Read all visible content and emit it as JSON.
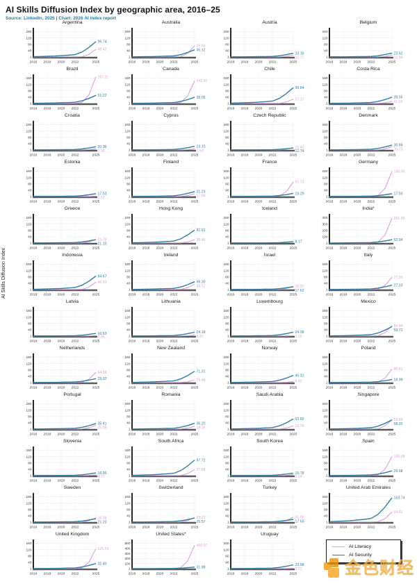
{
  "header": {
    "title": "AI Skills Diffusion Index by geographic area, 2016–25",
    "subtitle": "Source: LinkedIn, 2025 | Chart: 2026 AI Index report"
  },
  "ylabel": "AI Skills Diffusion Index",
  "legend": {
    "items": [
      {
        "label": "AI Literacy",
        "series": "literacy",
        "color": "#dc9fd8"
      },
      {
        "label": "AI Security",
        "series": "security",
        "color": "#2e7fa3"
      }
    ]
  },
  "watermark": {
    "text": "金色财经"
  },
  "colors": {
    "literacy": "#dc9fd8",
    "security": "#2e7fa3",
    "subtitle": "#1b7fa6",
    "axis_spine": "#111111",
    "baseline": "#5a5a5a",
    "grid": "#e9eef3"
  },
  "chart_data": {
    "type": "line",
    "title": "AI Skills Diffusion Index by geographic area, 2016–25",
    "source": "Source: LinkedIn, 2025 | Chart: 2026 AI Index report",
    "ylabel": "AI Skills Diffusion Index",
    "x_years": [
      2016,
      2017,
      2018,
      2019,
      2020,
      2021,
      2022,
      2023,
      2024,
      2025
    ],
    "x_ticks": [
      "2016",
      "2018",
      "2020",
      "2022",
      "2025"
    ],
    "default_yticks": [
      160,
      120,
      80,
      40,
      1
    ],
    "series_names": [
      "AI Literacy",
      "AI Security"
    ],
    "legend_position": "bottom-right",
    "grid": true,
    "charts": [
      {
        "country": "Argentina",
        "literacy": 48.42,
        "security": 96.74
      },
      {
        "country": "Australia",
        "literacy": 69.93,
        "security": 45.12
      },
      {
        "country": "Austria",
        "literacy": 10.77,
        "security": 23.16
      },
      {
        "country": "Belgium",
        "literacy": 10.94,
        "security": 23.62
      },
      {
        "country": "Brazil",
        "literacy": 167.31,
        "security": 51.22
      },
      {
        "country": "Canada",
        "literacy": 142.97,
        "security": 39.05
      },
      {
        "country": "Chile",
        "literacy": 27.17,
        "security": 99.84
      },
      {
        "country": "Costa Rica",
        "literacy": 11.59,
        "security": 39.55
      },
      {
        "country": "Croatia",
        "literacy": 7.36,
        "security": 20.36
      },
      {
        "country": "Cyprus",
        "literacy": 7.53,
        "security": 23.1
      },
      {
        "country": "Czech Republic",
        "literacy": 15.42,
        "security": 12.74
      },
      {
        "country": "Denmark",
        "literacy": 20.73,
        "security": 30.86
      },
      {
        "country": "Estonia",
        "literacy": 2.52,
        "security": 17.53
      },
      {
        "country": "Finland",
        "literacy": 17.05,
        "security": 31.23
      },
      {
        "country": "France",
        "literacy": 91.73,
        "security": 19.29
      },
      {
        "country": "Germany",
        "literacy": 158.0,
        "security": 17.5
      },
      {
        "country": "Greece",
        "literacy": 21.7,
        "security": 21.1
      },
      {
        "country": "Hong Kong",
        "literacy": 20.46,
        "security": 81.91
      },
      {
        "country": "Iceland",
        "literacy": null,
        "security": 8.17
      },
      {
        "country": "India*",
        "literacy": 391.99,
        "security": 52.94,
        "yticks": [
          400,
          300,
          200,
          100,
          1
        ]
      },
      {
        "country": "Indonesia",
        "literacy": 46.53,
        "security": 84.67
      },
      {
        "country": "Ireland",
        "literacy": 34.52,
        "security": 49.3
      },
      {
        "country": "Israel",
        "literacy": 20.37,
        "security": 17.62
      },
      {
        "country": "Italy",
        "literacy": 77.95,
        "security": 27.33
      },
      {
        "country": "Latvia",
        "literacy": 2.95,
        "security": 16.63
      },
      {
        "country": "Lithuania",
        "literacy": 6.37,
        "security": 24.18
      },
      {
        "country": "Luxembourg",
        "literacy": 2.15,
        "security": 24.38
      },
      {
        "country": "Mexico",
        "literacy": 64.84,
        "security": 59.71
      },
      {
        "country": "Netherlands",
        "literacy": 64.68,
        "security": 25.02
      },
      {
        "country": "New Zealand",
        "literacy": 15.48,
        "security": 71.31
      },
      {
        "country": "Norway",
        "literacy": 5.92,
        "security": 45.31
      },
      {
        "country": "Poland",
        "literacy": 85.61,
        "security": 18.99
      },
      {
        "country": "Portugal",
        "literacy": 25.38,
        "security": 35.41
      },
      {
        "country": "Romania",
        "literacy": 18.35,
        "security": 36.2
      },
      {
        "country": "Saudi Arabia",
        "literacy": 19.76,
        "security": 63.6
      },
      {
        "country": "Singapore",
        "literacy": 59.93,
        "security": 58.02
      },
      {
        "country": "Slovenia",
        "literacy": 4.77,
        "security": 16.95
      },
      {
        "country": "South Africa",
        "literacy": 37.88,
        "security": 97.72
      },
      {
        "country": "South Korea",
        "literacy": 6.64,
        "security": 15.78
      },
      {
        "country": "Spain",
        "literacy": 120.68,
        "security": 29.68
      },
      {
        "country": "Sweden",
        "literacy": 26.98,
        "security": 21.2
      },
      {
        "country": "Switzerland",
        "literacy": 29.27,
        "security": 25.57
      },
      {
        "country": "Turkey",
        "literacy": 31.06,
        "security": 17.65
      },
      {
        "country": "United Arab Emirates",
        "literacy": 64.41,
        "security": 153.74
      },
      {
        "country": "United Kingdom",
        "literacy": 125.93,
        "security": 32.4
      },
      {
        "country": "United States*",
        "literacy": 460.07,
        "security": 31.88,
        "yticks": [
          500,
          400,
          300,
          200,
          100,
          1
        ]
      },
      {
        "country": "Uruguay",
        "literacy": 2.71,
        "security": 23.98
      }
    ]
  }
}
